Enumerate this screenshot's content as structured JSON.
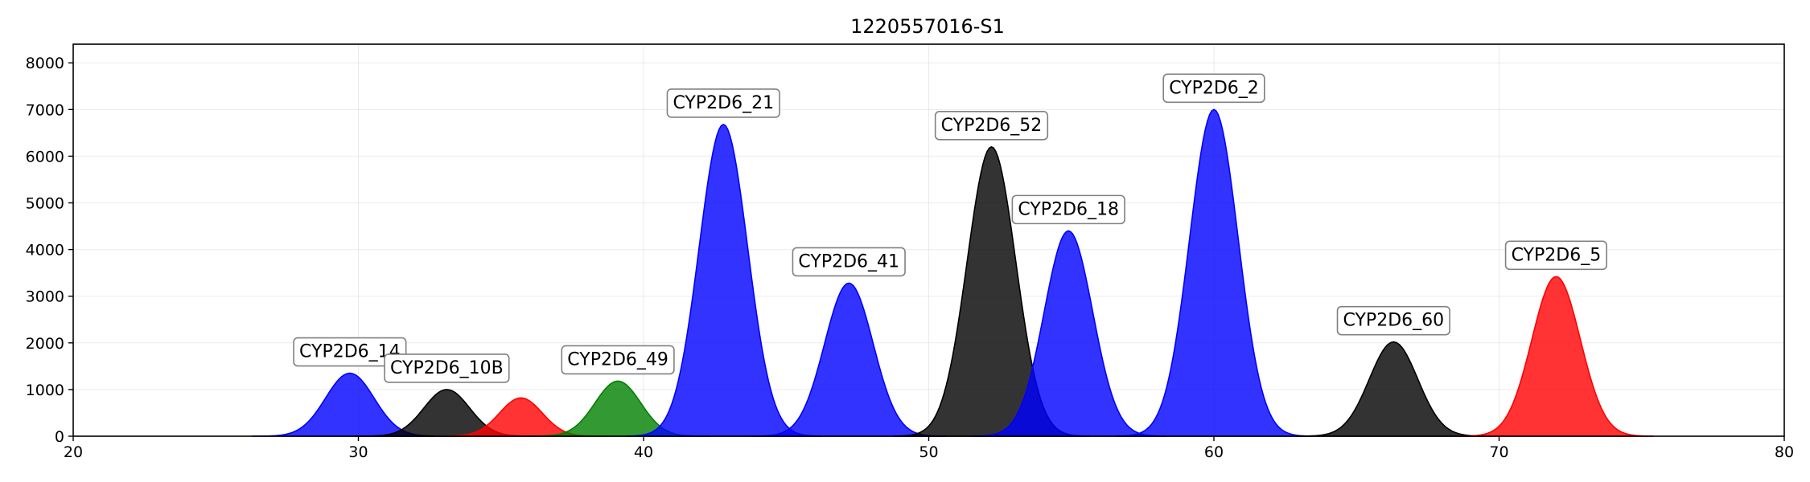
{
  "chart_data": {
    "type": "area",
    "title": "1220557016-S1",
    "xlabel": "",
    "ylabel": "",
    "xlim": [
      20,
      80
    ],
    "ylim": [
      0,
      8400
    ],
    "x_ticks": [
      20,
      30,
      40,
      50,
      60,
      70,
      80
    ],
    "y_ticks": [
      0,
      1000,
      2000,
      3000,
      4000,
      5000,
      6000,
      7000,
      8000
    ],
    "grid": true,
    "legend": "none",
    "peaks": [
      {
        "name": "CYP2D6_14",
        "x": 29.7,
        "height": 1350,
        "sigma": 0.85,
        "color": "#0000ff"
      },
      {
        "name": "CYP2D6_10B",
        "x": 33.1,
        "height": 1000,
        "sigma": 0.8,
        "color": "#000000"
      },
      {
        "name": "",
        "x": 35.7,
        "height": 820,
        "sigma": 0.75,
        "color": "#ff0000"
      },
      {
        "name": "CYP2D6_49",
        "x": 39.1,
        "height": 1180,
        "sigma": 0.8,
        "color": "#008000"
      },
      {
        "name": "CYP2D6_21",
        "x": 42.8,
        "height": 6680,
        "sigma": 0.85,
        "color": "#0000ff"
      },
      {
        "name": "CYP2D6_41",
        "x": 47.2,
        "height": 3280,
        "sigma": 0.85,
        "color": "#0000ff"
      },
      {
        "name": "CYP2D6_52",
        "x": 52.2,
        "height": 6200,
        "sigma": 0.85,
        "color": "#000000"
      },
      {
        "name": "CYP2D6_18",
        "x": 54.9,
        "height": 4400,
        "sigma": 0.85,
        "color": "#0000ff"
      },
      {
        "name": "CYP2D6_2",
        "x": 60.0,
        "height": 7000,
        "sigma": 0.85,
        "color": "#0000ff"
      },
      {
        "name": "CYP2D6_60",
        "x": 66.3,
        "height": 2020,
        "sigma": 0.85,
        "color": "#000000"
      },
      {
        "name": "CYP2D6_5",
        "x": 72.0,
        "height": 3420,
        "sigma": 0.85,
        "color": "#ff0000"
      }
    ]
  }
}
